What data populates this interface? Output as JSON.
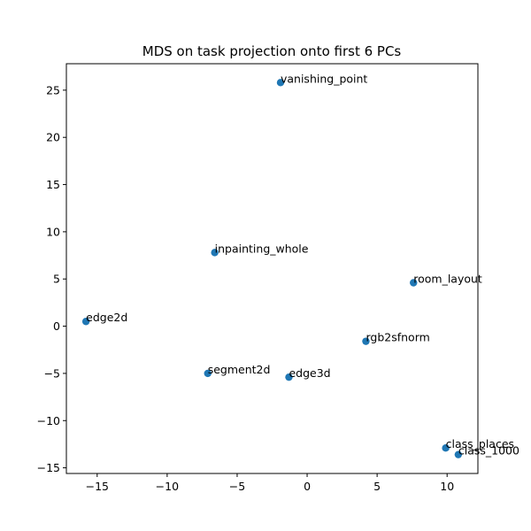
{
  "chart_data": {
    "type": "scatter",
    "title": "MDS on task projection onto first 6 PCs",
    "xlabel": "",
    "ylabel": "",
    "xlim": [
      -17.2,
      12.2
    ],
    "ylim": [
      -15.6,
      27.8
    ],
    "xticks": [
      -15,
      -10,
      -5,
      0,
      5,
      10
    ],
    "yticks": [
      -15,
      -10,
      -5,
      0,
      5,
      10,
      15,
      20,
      25
    ],
    "xtick_labels": [
      "−15",
      "−10",
      "−5",
      "0",
      "5",
      "10"
    ],
    "ytick_labels": [
      "−15",
      "−10",
      "−5",
      "0",
      "5",
      "10",
      "15",
      "20",
      "25"
    ],
    "grid": false,
    "marker_color": "#1f77b4",
    "points": [
      {
        "label": "vanishing_point",
        "x": -1.9,
        "y": 25.8
      },
      {
        "label": "inpainting_whole",
        "x": -6.6,
        "y": 7.8
      },
      {
        "label": "room_layout",
        "x": 7.6,
        "y": 4.6
      },
      {
        "label": "edge2d",
        "x": -15.8,
        "y": 0.5
      },
      {
        "label": "rgb2sfnorm",
        "x": 4.2,
        "y": -1.6
      },
      {
        "label": "segment2d",
        "x": -7.1,
        "y": -5.0
      },
      {
        "label": "edge3d",
        "x": -1.3,
        "y": -5.4
      },
      {
        "label": "class_places",
        "x": 9.9,
        "y": -12.9
      },
      {
        "label": "class_1000",
        "x": 10.8,
        "y": -13.6
      }
    ]
  }
}
